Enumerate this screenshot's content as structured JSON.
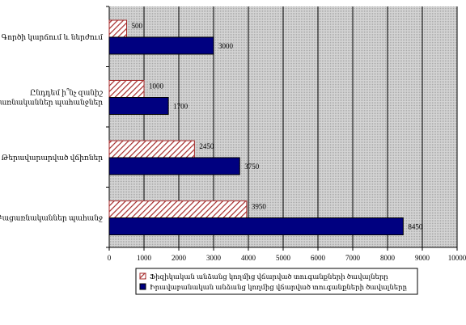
{
  "chart_data": {
    "type": "bar",
    "orientation": "horizontal",
    "categories": [
      "Գործի կարճում և ներժում",
      "Ընդդեմ ի՞նչ զանիշ\nբացառնականներ պահանջներ",
      "Թերավարարված վճիռներ",
      "Բացառնականներ պահանջ"
    ],
    "series": [
      {
        "name": "Ֆիզիկական անձանց կողմից վճարված տուգանքների ծավալները",
        "values": [
          500,
          1000,
          2450,
          3950
        ],
        "value_labels": [
          "500",
          "1000",
          "2450",
          "3950"
        ],
        "color": "#a52a2a",
        "pattern": "diagonal-hatch"
      },
      {
        "name": "Իրավաբանական անձանց կողմից վճարված տուգանքների ծավալները",
        "values": [
          3000,
          1700,
          3750,
          8450
        ],
        "value_labels": [
          "3000",
          "1700",
          "3750",
          "8450"
        ],
        "color": "#000080",
        "pattern": "solid"
      }
    ],
    "x_ticks": [
      0,
      1000,
      2000,
      3000,
      4000,
      5000,
      6000,
      7000,
      8000,
      9000,
      10000
    ],
    "xlim": [
      0,
      10000
    ],
    "grid": true,
    "plot_background": "#c0c0c0",
    "legend_position": "bottom"
  }
}
